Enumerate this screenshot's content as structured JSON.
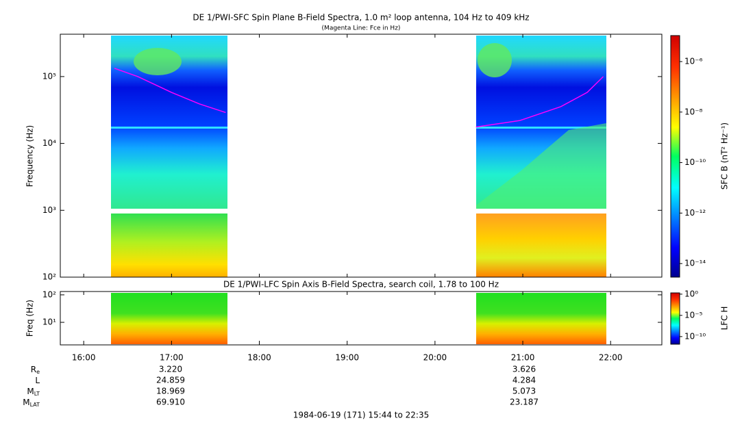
{
  "chart_data": [
    {
      "type": "spectrogram",
      "title": "DE 1/PWI-SFC  Spin Plane B-Field Spectra, 1.0 m² loop antenna, 104 Hz to 409 kHz",
      "subtitle": "(Magenta Line: Fce in Hz)",
      "ylabel": "Frequency (Hz)",
      "xlim": [
        944,
        1355
      ],
      "ylim": [
        100,
        430000
      ],
      "yscale": "log",
      "yticks": [
        {
          "value": 100,
          "label": "10²"
        },
        {
          "value": 1000,
          "label": "10³"
        },
        {
          "value": 10000,
          "label": "10⁴"
        },
        {
          "value": 100000,
          "label": "10⁵"
        }
      ],
      "series": [
        {
          "color": "#ff00ff",
          "x": [
            981,
            997,
            1020,
            1039,
            1057
          ],
          "values": [
            133000,
            100000,
            58000,
            39000,
            29000
          ]
        },
        {
          "color": "#ff00ff",
          "x": [
            1228,
            1258,
            1286,
            1304,
            1315
          ],
          "values": [
            17600,
            22000,
            35500,
            58000,
            100000
          ]
        }
      ],
      "colorbar": {
        "label": "SFC B (nT² Hz⁻¹)",
        "scale": "log",
        "lim": [
          2.9e-15,
          1.07e-05
        ],
        "ticks": [
          {
            "value": 1e-14,
            "label": "10⁻¹⁴"
          },
          {
            "value": 1e-12,
            "label": "10⁻¹²"
          },
          {
            "value": 1e-10,
            "label": "10⁻¹⁰"
          },
          {
            "value": 1e-08,
            "label": "10⁻⁸"
          },
          {
            "value": 1e-06,
            "label": "10⁻⁶"
          }
        ]
      }
    },
    {
      "type": "spectrogram",
      "title": "DE 1/PWI-LFC  Spin Axis B-Field Spectra, search coil, 1.78 to 100 Hz",
      "ylabel": "Freq (Hz)",
      "xlim": [
        944,
        1355
      ],
      "ylim": [
        1.6,
        118
      ],
      "yscale": "log",
      "yticks": [
        {
          "value": 10,
          "label": "10¹"
        },
        {
          "value": 100,
          "label": "10²"
        }
      ],
      "xticks": [
        {
          "value": 960,
          "label": "16:00"
        },
        {
          "value": 1020,
          "label": "17:00"
        },
        {
          "value": 1080,
          "label": "18:00"
        },
        {
          "value": 1140,
          "label": "19:00"
        },
        {
          "value": 1200,
          "label": "20:00"
        },
        {
          "value": 1260,
          "label": "21:00"
        },
        {
          "value": 1320,
          "label": "22:00"
        }
      ],
      "colorbar": {
        "label": "LFC H",
        "scale": "log",
        "lim": [
          1.6e-12,
          2.0
        ],
        "ticks": [
          {
            "value": 1e-10,
            "label": "10⁻¹⁰"
          },
          {
            "value": 1e-05,
            "label": "10⁻⁵"
          },
          {
            "value": 1,
            "label": "10⁰"
          }
        ]
      }
    }
  ],
  "ephemeris": {
    "labels": [
      {
        "main": "R",
        "sub": "e"
      },
      {
        "main": "L",
        "sub": ""
      },
      {
        "main": "M",
        "sub": "LT"
      },
      {
        "main": "M",
        "sub": "LAT"
      }
    ],
    "columns": [
      [
        "3.220",
        "24.859",
        "18.969",
        "69.910"
      ],
      [
        "3.626",
        "4.284",
        "5.073",
        "23.187"
      ]
    ]
  },
  "footer": "1984-06-19 (171) 15:44 to 22:35"
}
